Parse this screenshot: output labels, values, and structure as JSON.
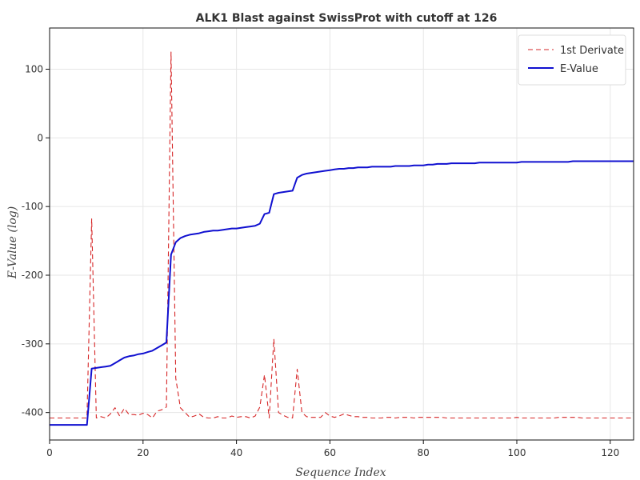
{
  "chart_data": {
    "type": "line",
    "title": "ALK1 Blast against SwissProt with cutoff at 126",
    "xlabel": "Sequence Index",
    "ylabel": "E-Value (log)",
    "xlim": [
      0,
      125
    ],
    "ylim": [
      -440,
      160
    ],
    "xticks": [
      0,
      20,
      40,
      60,
      80,
      100,
      120
    ],
    "yticks": [
      100,
      0,
      -100,
      -200,
      -300,
      -400
    ],
    "grid": true,
    "legend_position": "top-right",
    "series": [
      {
        "name": "1st Derivate",
        "color": "#d62728",
        "dash": "dashed",
        "x": [
          0,
          1,
          2,
          3,
          4,
          5,
          6,
          7,
          8,
          9,
          10,
          11,
          12,
          13,
          14,
          15,
          16,
          17,
          18,
          19,
          20,
          21,
          22,
          23,
          24,
          25,
          26,
          27,
          28,
          29,
          30,
          31,
          32,
          33,
          34,
          35,
          36,
          37,
          38,
          39,
          40,
          41,
          42,
          43,
          44,
          45,
          46,
          47,
          48,
          49,
          50,
          51,
          52,
          53,
          54,
          55,
          56,
          57,
          58,
          59,
          60,
          61,
          62,
          63,
          64,
          65,
          66,
          67,
          68,
          69,
          70,
          71,
          72,
          73,
          74,
          75,
          76,
          77,
          78,
          79,
          80,
          81,
          82,
          83,
          84,
          85,
          86,
          87,
          88,
          89,
          90,
          91,
          92,
          93,
          94,
          95,
          96,
          97,
          98,
          99,
          100,
          101,
          102,
          103,
          104,
          105,
          106,
          107,
          108,
          109,
          110,
          111,
          112,
          113,
          114,
          115,
          116,
          117,
          118,
          119,
          120,
          121,
          122,
          123,
          124,
          125
        ],
        "values": [
          -408,
          -408,
          -408,
          -408,
          -408,
          -408,
          -408,
          -408,
          -408,
          -118,
          -408,
          -406,
          -408,
          -402,
          -393,
          -405,
          -394,
          -403,
          -403,
          -404,
          -401,
          -403,
          -408,
          -398,
          -396,
          -392,
          125,
          -350,
          -393,
          -400,
          -407,
          -405,
          -402,
          -407,
          -408,
          -408,
          -406,
          -408,
          -408,
          -405,
          -407,
          -406,
          -406,
          -408,
          -405,
          -392,
          -345,
          -408,
          -293,
          -400,
          -404,
          -407,
          -408,
          -337,
          -400,
          -406,
          -407,
          -407,
          -407,
          -400,
          -405,
          -407,
          -405,
          -402,
          -404,
          -406,
          -406,
          -407,
          -407,
          -408,
          -408,
          -408,
          -407,
          -407,
          -408,
          -407,
          -407,
          -407,
          -408,
          -407,
          -407,
          -407,
          -407,
          -407,
          -407,
          -408,
          -408,
          -408,
          -408,
          -408,
          -408,
          -408,
          -408,
          -408,
          -408,
          -408,
          -408,
          -408,
          -408,
          -408,
          -407,
          -408,
          -408,
          -408,
          -408,
          -408,
          -408,
          -408,
          -408,
          -407,
          -407,
          -407,
          -407,
          -407,
          -408,
          -408,
          -408,
          -408,
          -408,
          -408,
          -408,
          -408,
          -408,
          -408,
          -408,
          -408
        ]
      },
      {
        "name": "E-Value",
        "color": "#1010d0",
        "dash": "solid",
        "x": [
          0,
          1,
          2,
          3,
          4,
          5,
          6,
          7,
          8,
          9,
          10,
          11,
          12,
          13,
          14,
          15,
          16,
          17,
          18,
          19,
          20,
          21,
          22,
          23,
          24,
          25,
          26,
          27,
          28,
          29,
          30,
          31,
          32,
          33,
          34,
          35,
          36,
          37,
          38,
          39,
          40,
          41,
          42,
          43,
          44,
          45,
          46,
          47,
          48,
          49,
          50,
          51,
          52,
          53,
          54,
          55,
          56,
          57,
          58,
          59,
          60,
          61,
          62,
          63,
          64,
          65,
          66,
          67,
          68,
          69,
          70,
          71,
          72,
          73,
          74,
          75,
          76,
          77,
          78,
          79,
          80,
          81,
          82,
          83,
          84,
          85,
          86,
          87,
          88,
          89,
          90,
          91,
          92,
          93,
          94,
          95,
          96,
          97,
          98,
          99,
          100,
          101,
          102,
          103,
          104,
          105,
          106,
          107,
          108,
          109,
          110,
          111,
          112,
          113,
          114,
          115,
          116,
          117,
          118,
          119,
          120,
          121,
          122,
          123,
          124,
          125
        ],
        "values": [
          -418,
          -418,
          -418,
          -418,
          -418,
          -418,
          -418,
          -418,
          -418,
          -336,
          -335,
          -334,
          -333,
          -332,
          -328,
          -324,
          -320,
          -318,
          -317,
          -315,
          -314,
          -312,
          -310,
          -306,
          -302,
          -298,
          -170,
          -152,
          -146,
          -143,
          -141,
          -140,
          -139,
          -137,
          -136,
          -135,
          -135,
          -134,
          -133,
          -132,
          -132,
          -131,
          -130,
          -129,
          -128,
          -125,
          -111,
          -109,
          -82,
          -80,
          -79,
          -78,
          -77,
          -58,
          -54,
          -52,
          -51,
          -50,
          -49,
          -48,
          -47,
          -46,
          -45,
          -45,
          -44,
          -44,
          -43,
          -43,
          -43,
          -42,
          -42,
          -42,
          -42,
          -42,
          -41,
          -41,
          -41,
          -41,
          -40,
          -40,
          -40,
          -39,
          -39,
          -38,
          -38,
          -38,
          -37,
          -37,
          -37,
          -37,
          -37,
          -37,
          -36,
          -36,
          -36,
          -36,
          -36,
          -36,
          -36,
          -36,
          -36,
          -35,
          -35,
          -35,
          -35,
          -35,
          -35,
          -35,
          -35,
          -35,
          -35,
          -35,
          -34,
          -34,
          -34,
          -34,
          -34,
          -34,
          -34,
          -34,
          -34,
          -34,
          -34,
          -34,
          -34,
          -34
        ]
      }
    ]
  }
}
